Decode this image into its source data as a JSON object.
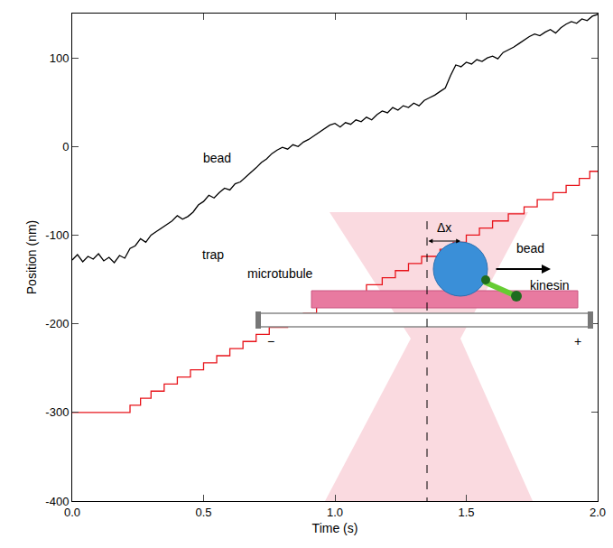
{
  "chart_data": {
    "type": "line",
    "x_label": "Time (s)",
    "y_label": "Position (nm)",
    "xlim": [
      0,
      2
    ],
    "ylim": [
      -400,
      150
    ],
    "xticks": [
      {
        "value": 0,
        "label": "0.0"
      },
      0.5,
      {
        "value": 1,
        "label": "1.0"
      },
      1.5,
      {
        "value": 2,
        "label": "2.0"
      }
    ],
    "yticks": [
      -400,
      -300,
      -200,
      -100,
      0,
      100
    ],
    "grid": false,
    "series": [
      {
        "name": "bead",
        "color": "#000000",
        "line_style": "solid",
        "x": [
          0.0,
          0.02,
          0.04,
          0.06,
          0.08,
          0.1,
          0.12,
          0.14,
          0.16,
          0.18,
          0.2,
          0.22,
          0.24,
          0.26,
          0.28,
          0.3,
          0.32,
          0.34,
          0.36,
          0.38,
          0.4,
          0.42,
          0.44,
          0.46,
          0.48,
          0.5,
          0.52,
          0.54,
          0.56,
          0.58,
          0.6,
          0.62,
          0.64,
          0.66,
          0.68,
          0.7,
          0.72,
          0.74,
          0.76,
          0.78,
          0.8,
          0.82,
          0.84,
          0.86,
          0.88,
          0.9,
          0.92,
          0.94,
          0.96,
          0.98,
          1.0,
          1.02,
          1.04,
          1.06,
          1.08,
          1.1,
          1.12,
          1.14,
          1.16,
          1.18,
          1.2,
          1.22,
          1.24,
          1.26,
          1.28,
          1.3,
          1.32,
          1.34,
          1.36,
          1.38,
          1.4,
          1.42,
          1.44,
          1.46,
          1.48,
          1.5,
          1.52,
          1.54,
          1.56,
          1.58,
          1.6,
          1.62,
          1.64,
          1.66,
          1.68,
          1.7,
          1.72,
          1.74,
          1.76,
          1.78,
          1.8,
          1.82,
          1.84,
          1.86,
          1.88,
          1.9,
          1.92,
          1.94,
          1.96,
          1.98,
          2.0
        ],
        "values": [
          -128,
          -122,
          -130,
          -124,
          -127,
          -121,
          -129,
          -125,
          -131,
          -123,
          -126,
          -115,
          -112,
          -104,
          -108,
          -100,
          -96,
          -92,
          -88,
          -84,
          -78,
          -82,
          -79,
          -74,
          -66,
          -62,
          -55,
          -58,
          -52,
          -47,
          -49,
          -42,
          -40,
          -35,
          -30,
          -24,
          -18,
          -14,
          -8,
          -4,
          -1,
          -3,
          2,
          0,
          5,
          8,
          12,
          16,
          20,
          24,
          26,
          22,
          27,
          25,
          30,
          28,
          33,
          30,
          36,
          40,
          38,
          44,
          41,
          46,
          44,
          49,
          46,
          52,
          55,
          58,
          62,
          66,
          80,
          92,
          90,
          95,
          93,
          98,
          96,
          100,
          102,
          99,
          106,
          109,
          112,
          116,
          120,
          124,
          127,
          125,
          129,
          132,
          128,
          134,
          138,
          141,
          139,
          144,
          142,
          147,
          149
        ]
      },
      {
        "name": "trap",
        "color": "#e8141b",
        "line_style": "step",
        "x": [
          0,
          0.22,
          0.26,
          0.3,
          0.35,
          0.4,
          0.45,
          0.5,
          0.55,
          0.6,
          0.65,
          0.7,
          0.75,
          0.82,
          0.88,
          0.93,
          0.99,
          1.05,
          1.12,
          1.18,
          1.23,
          1.28,
          1.33,
          1.4,
          1.45,
          1.5,
          1.55,
          1.6,
          1.66,
          1.72,
          1.77,
          1.83,
          1.88,
          1.93,
          1.97,
          2.0
        ],
        "values": [
          -300,
          -292,
          -284,
          -276,
          -268,
          -260,
          -252,
          -244,
          -236,
          -228,
          -220,
          -212,
          -204,
          -196,
          -188,
          -180,
          -172,
          -164,
          -156,
          -148,
          -140,
          -132,
          -124,
          -116,
          -108,
          -100,
          -92,
          -84,
          -76,
          -68,
          -60,
          -52,
          -44,
          -36,
          -28,
          -28
        ]
      }
    ],
    "inset_labels": {
      "dx": "Δx",
      "bead": "bead",
      "kinesin": "kinesin",
      "microtubule": "microtubule",
      "minus": "−",
      "plus": "+"
    }
  }
}
